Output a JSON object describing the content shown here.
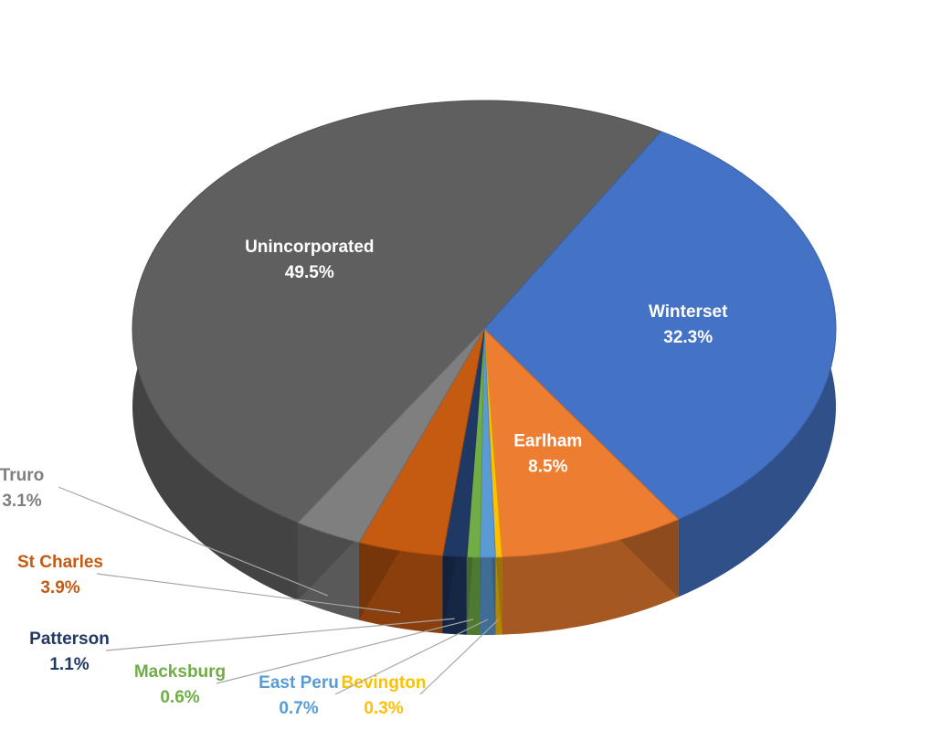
{
  "chart_data": {
    "type": "pie",
    "categories": [
      "Unincorporated",
      "Winterset",
      "Earlham",
      "Bevington",
      "East Peru",
      "Macksburg",
      "Patterson",
      "St Charles",
      "Truro"
    ],
    "values": [
      49.5,
      32.3,
      8.5,
      0.3,
      0.7,
      0.6,
      1.1,
      3.9,
      3.1
    ],
    "value_labels": [
      "49.5%",
      "32.3%",
      "8.5%",
      "0.3%",
      "0.7%",
      "0.6%",
      "1.1%",
      "3.9%",
      "3.1%"
    ],
    "colors": [
      "#5f5f5f",
      "#4472c4",
      "#ed7d31",
      "#ffc000",
      "#5b9bd5",
      "#70ad47",
      "#203864",
      "#c55a11",
      "#7f7f7f"
    ]
  }
}
